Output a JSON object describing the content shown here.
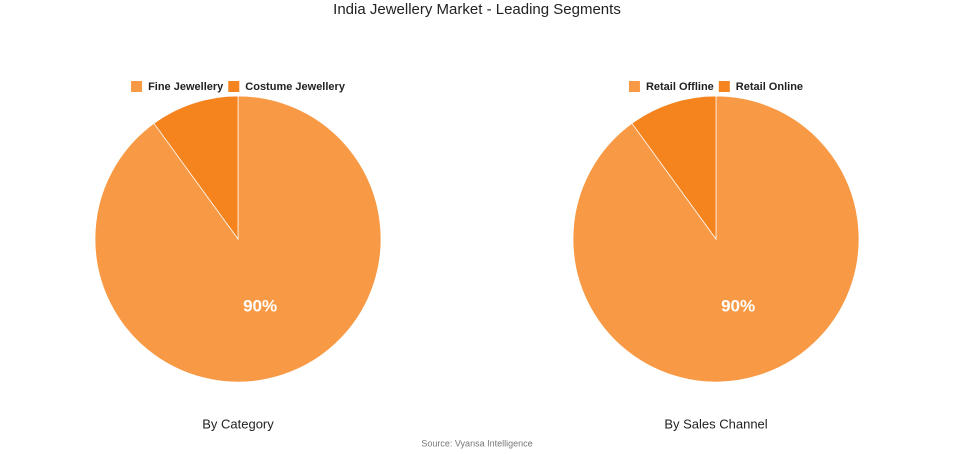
{
  "title": "India Jewellery Market - Leading Segments",
  "source": "Source: Vyansa Intelligence",
  "chart_data": [
    {
      "type": "pie",
      "title": "By Category",
      "categories": [
        "Fine Jewellery",
        "Costume Jewellery"
      ],
      "values": [
        90,
        10
      ],
      "value_labels": [
        "90%",
        null
      ],
      "colors": [
        "#f89a45",
        "#f5841f"
      ]
    },
    {
      "type": "pie",
      "title": "By Sales Channel",
      "categories": [
        "Retail Offline",
        "Retail Online"
      ],
      "values": [
        90,
        10
      ],
      "value_labels": [
        "90%",
        null
      ],
      "colors": [
        "#f89a45",
        "#f5841f"
      ]
    }
  ]
}
